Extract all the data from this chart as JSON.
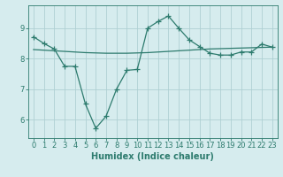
{
  "x": [
    0,
    1,
    2,
    3,
    4,
    5,
    6,
    7,
    8,
    9,
    10,
    11,
    12,
    13,
    14,
    15,
    16,
    17,
    18,
    19,
    20,
    21,
    22,
    23
  ],
  "y_main": [
    8.72,
    8.5,
    8.32,
    7.75,
    7.75,
    6.52,
    5.72,
    6.12,
    7.0,
    7.62,
    7.65,
    9.0,
    9.22,
    9.4,
    9.0,
    8.62,
    8.4,
    8.18,
    8.12,
    8.12,
    8.22,
    8.22,
    8.48,
    8.38
  ],
  "y_trend": [
    8.3,
    8.28,
    8.26,
    8.24,
    8.22,
    8.2,
    8.19,
    8.18,
    8.18,
    8.18,
    8.19,
    8.2,
    8.22,
    8.24,
    8.26,
    8.28,
    8.3,
    8.32,
    8.33,
    8.34,
    8.35,
    8.36,
    8.37,
    8.38
  ],
  "line_color": "#2d7b6e",
  "bg_color": "#d6ecee",
  "grid_color": "#afd0d3",
  "xlabel": "Humidex (Indice chaleur)",
  "ylim": [
    5.4,
    9.75
  ],
  "xlim": [
    -0.5,
    23.5
  ],
  "yticks": [
    6,
    7,
    8,
    9
  ],
  "xticks": [
    0,
    1,
    2,
    3,
    4,
    5,
    6,
    7,
    8,
    9,
    10,
    11,
    12,
    13,
    14,
    15,
    16,
    17,
    18,
    19,
    20,
    21,
    22,
    23
  ],
  "xtick_labels": [
    "0",
    "1",
    "2",
    "3",
    "4",
    "5",
    "6",
    "7",
    "8",
    "9",
    "10",
    "11",
    "12",
    "13",
    "14",
    "15",
    "16",
    "17",
    "18",
    "19",
    "20",
    "21",
    "22",
    "23"
  ],
  "marker": "+",
  "markersize": 4,
  "linewidth": 0.9,
  "fontsize_xlabel": 7,
  "fontsize_ticks": 6
}
